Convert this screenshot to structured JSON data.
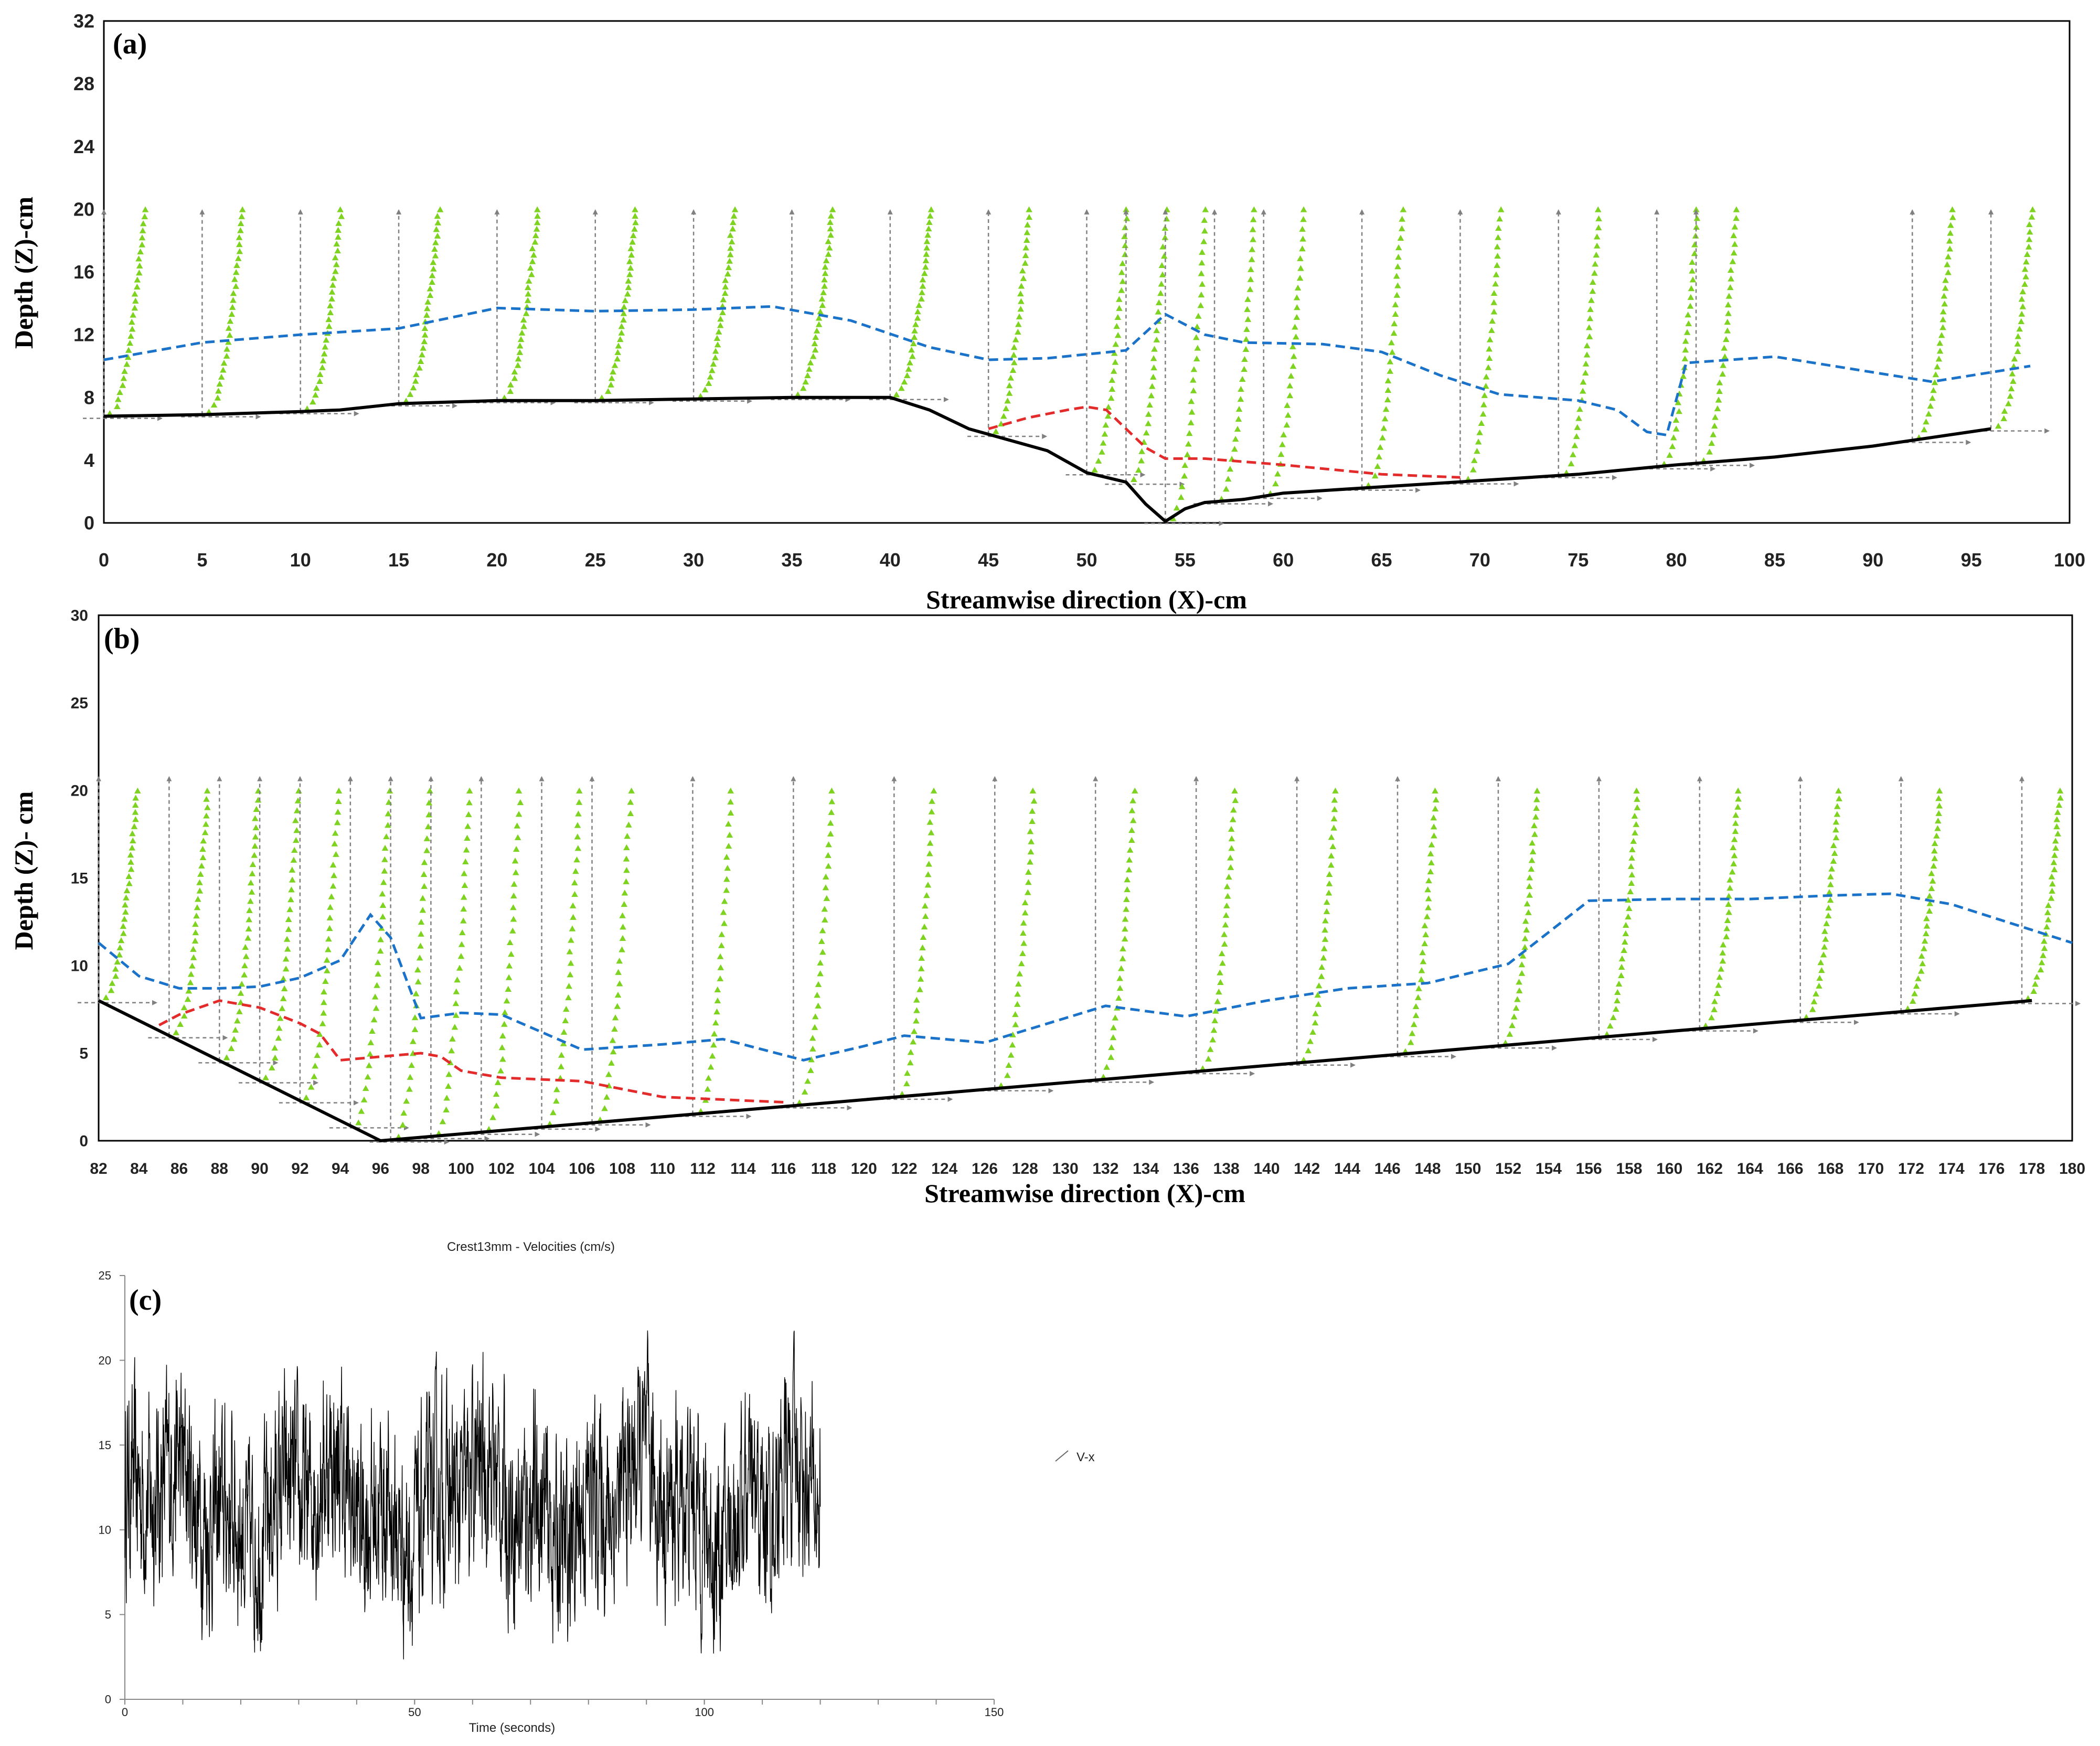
{
  "colors": {
    "blue_dashed": "#1a73c9",
    "red_dashed": "#e32b2b",
    "bed_line": "#000000",
    "velocity_markers": "#7ed321",
    "arrows": "#808080",
    "timeseries": "#000000"
  },
  "chart_data": [
    {
      "type": "line",
      "panel_label": "(a)",
      "xlabel": "Streamwise direction (X)-cm",
      "ylabel": "Depth (Z)-cm",
      "xlim": [
        0,
        100
      ],
      "ylim": [
        0,
        32
      ],
      "xticks": [
        0,
        5,
        10,
        15,
        20,
        25,
        30,
        35,
        40,
        45,
        50,
        55,
        60,
        65,
        70,
        75,
        80,
        85,
        90,
        95,
        100
      ],
      "yticks": [
        0,
        4,
        8,
        12,
        16,
        20,
        24,
        28,
        32
      ],
      "grid": false,
      "series": [
        {
          "style": "solid-black",
          "x": [
            0,
            5,
            10,
            12,
            15,
            20,
            25,
            30,
            35,
            40,
            42,
            44,
            46,
            48,
            50,
            52,
            53,
            54,
            55,
            56,
            58,
            60,
            65,
            70,
            75,
            80,
            85,
            90,
            96
          ],
          "y": [
            6.8,
            6.9,
            7.1,
            7.2,
            7.6,
            7.8,
            7.8,
            7.9,
            8.0,
            8.0,
            7.2,
            6.0,
            5.3,
            4.6,
            3.2,
            2.6,
            1.2,
            0.1,
            0.9,
            1.3,
            1.5,
            1.9,
            2.3,
            2.7,
            3.1,
            3.7,
            4.2,
            4.9,
            6.0
          ]
        },
        {
          "style": "dashed-blue",
          "x": [
            0,
            5,
            10,
            15,
            20,
            25,
            30,
            34,
            38,
            42,
            45,
            48,
            52,
            54,
            56,
            58,
            62,
            65,
            68,
            71,
            73,
            75,
            77,
            78.5,
            79.5,
            80.5,
            85,
            93,
            98
          ],
          "y": [
            10.4,
            11.5,
            12.0,
            12.4,
            13.7,
            13.5,
            13.6,
            13.8,
            12.9,
            11.2,
            10.4,
            10.5,
            11.0,
            13.3,
            12.0,
            11.5,
            11.4,
            10.9,
            9.4,
            8.2,
            8.0,
            7.8,
            7.2,
            5.8,
            5.6,
            10.2,
            10.6,
            9.0,
            10.0
          ]
        },
        {
          "style": "dashed-red",
          "x": [
            45,
            47,
            49,
            50,
            51,
            52,
            53,
            54,
            56,
            60,
            65,
            69
          ],
          "y": [
            6.0,
            6.7,
            7.2,
            7.4,
            7.2,
            6.0,
            4.8,
            4.1,
            4.1,
            3.7,
            3.1,
            2.9
          ]
        }
      ],
      "profiles": {
        "bed_top_markers_at_x": [
          0,
          5,
          10,
          15,
          20,
          25,
          30,
          35,
          40,
          45,
          50,
          52,
          54,
          56.5,
          59,
          64,
          69,
          74,
          79,
          81,
          92,
          96
        ]
      }
    },
    {
      "type": "line",
      "panel_label": "(b)",
      "xlabel": "Streamwise direction (X)-cm",
      "ylabel": "Depth (Z)- cm",
      "xlim": [
        82,
        180
      ],
      "ylim": [
        0,
        30
      ],
      "xticks": [
        82,
        84,
        86,
        88,
        90,
        92,
        94,
        96,
        98,
        100,
        102,
        104,
        106,
        108,
        110,
        112,
        114,
        116,
        118,
        120,
        122,
        124,
        126,
        128,
        130,
        132,
        134,
        136,
        138,
        140,
        142,
        144,
        146,
        148,
        150,
        152,
        154,
        156,
        158,
        160,
        162,
        164,
        166,
        168,
        170,
        172,
        174,
        176,
        178,
        180
      ],
      "yticks": [
        0,
        5,
        10,
        15,
        20,
        25,
        30
      ],
      "grid": false,
      "series": [
        {
          "style": "solid-black",
          "x": [
            82,
            96,
            178
          ],
          "y": [
            8.0,
            0.0,
            8.0
          ]
        },
        {
          "style": "dashed-blue",
          "x": [
            82,
            84,
            86,
            88,
            90,
            92,
            94,
            95.5,
            96.5,
            98,
            100,
            102,
            106,
            110,
            113,
            117,
            120,
            122,
            126,
            132,
            136,
            140,
            144,
            148,
            152,
            156,
            160,
            164,
            168,
            171,
            174,
            180
          ],
          "y": [
            11.3,
            9.4,
            8.7,
            8.7,
            8.8,
            9.3,
            10.3,
            12.9,
            11.6,
            7.0,
            7.3,
            7.2,
            5.2,
            5.5,
            5.8,
            4.6,
            5.4,
            6.0,
            5.6,
            7.7,
            7.1,
            8.0,
            8.7,
            9.0,
            10.1,
            13.7,
            13.8,
            13.8,
            14.0,
            14.1,
            13.5,
            11.3
          ]
        },
        {
          "style": "dashed-red",
          "x": [
            85,
            86,
            88,
            90,
            92,
            93,
            94,
            96,
            98,
            99,
            100,
            102,
            104,
            106,
            110,
            114,
            116
          ],
          "y": [
            6.6,
            7.2,
            8.0,
            7.6,
            6.7,
            6.1,
            4.6,
            4.8,
            5.0,
            4.8,
            4.0,
            3.6,
            3.5,
            3.4,
            2.5,
            2.3,
            2.2
          ]
        }
      ],
      "profiles": {
        "bed_top_markers_at_x": [
          82,
          85.5,
          88,
          90,
          92,
          94.5,
          96.5,
          98.5,
          101,
          104,
          106.5,
          111.5,
          116.5,
          121.5,
          126.5,
          131.5,
          136.5,
          141.5,
          146.5,
          151.5,
          156.5,
          161.5,
          166.5,
          171.5,
          177.5
        ]
      }
    },
    {
      "type": "line",
      "panel_label": "(c)",
      "title": "Crest13mm - Velocities (cm/s)",
      "xlabel": "Time (seconds)",
      "ylabel": "",
      "xlim": [
        0,
        150
      ],
      "ylim": [
        0,
        25
      ],
      "xticks": [
        0,
        50,
        100,
        150
      ],
      "yticks": [
        0,
        5,
        10,
        15,
        20,
        25
      ],
      "grid": false,
      "legend": {
        "position": "right",
        "entries": [
          "V-x"
        ]
      },
      "series": [
        {
          "name": "V-x",
          "duration_s": 120,
          "mean": 11.5,
          "min": 0,
          "max": 22,
          "note_values": "dense turbulent signal sampled over 0-120 s"
        }
      ]
    }
  ]
}
